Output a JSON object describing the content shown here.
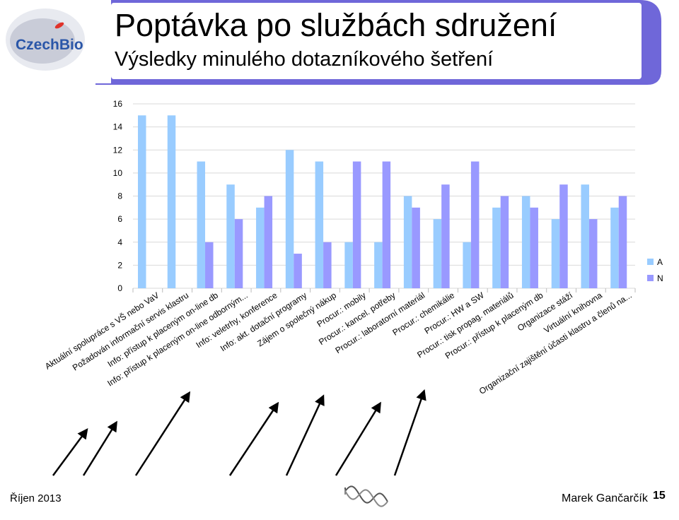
{
  "slide": {
    "title": "Poptávka po službách sdružení",
    "subtitle": "Výsledky minulého dotazníkového šetření",
    "logo_text": "CzechBio",
    "footer_date": "Říjen 2013",
    "footer_author": "Marek Gančarčík",
    "page_number": "15"
  },
  "colors": {
    "header_purple": "#6F67D9",
    "series_A": "#99CCFF",
    "series_N": "#9999FF"
  },
  "chart_data": {
    "type": "bar",
    "title": "",
    "xlabel": "",
    "ylabel": "",
    "ylim": [
      0,
      16
    ],
    "yticks": [
      0,
      2,
      4,
      6,
      8,
      10,
      12,
      14,
      16
    ],
    "grid": true,
    "legend_position": "right",
    "categories": [
      "Aktuální spolupráce s VŠ nebo VaV",
      "Požadován informační servis klastru",
      "Info: přístup k placeným on-line db",
      "Info: přístup k placeným on-line odborným...",
      "Info: veletrhy, konference",
      "Info: akt. dotační programy",
      "Zájem o společný nákup",
      "Procur.: mobily",
      "Procur.: kancel. potřeby",
      "Procur.: laboratorní materiál",
      "Procur.: chemikálie",
      "Procur.: HW a SW",
      "Procur.: tisk propag. materiálů",
      "Procur.: přístup k placeným db",
      "Organizace stáží",
      "Virtuální knihovna",
      "Organizační zajištění účasti klastru a členů na..."
    ],
    "series": [
      {
        "name": "A",
        "values": [
          15,
          15,
          11,
          9,
          7,
          12,
          11,
          4,
          4,
          8,
          6,
          4,
          7,
          8,
          6,
          9,
          7
        ]
      },
      {
        "name": "N",
        "values": [
          0,
          0,
          4,
          6,
          8,
          3,
          4,
          11,
          11,
          7,
          9,
          11,
          8,
          7,
          9,
          6,
          8
        ]
      }
    ],
    "highlighted_categories": [
      "Požadován informační servis klastru",
      "Info: přístup k placeným on-line db",
      "Info: přístup k placeným on-line odborným...",
      "Info: akt. dotační programy",
      "Zájem o společný nákup",
      "Procur.: chemikálie",
      "Procur.: HW a SW"
    ]
  }
}
